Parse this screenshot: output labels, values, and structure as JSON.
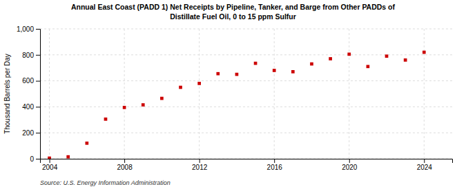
{
  "chart_data": {
    "type": "scatter",
    "title": "Annual East Coast (PADD 1) Net Receipts by Pipeline, Tanker, and Barge from Other PADDs of\nDistillate Fuel Oil, 0 to 15 ppm Sulfur",
    "ylabel": "Thousand Barrels per Day",
    "source": "Source: U.S. Energy Information Administration",
    "x": [
      2004,
      2005,
      2006,
      2007,
      2008,
      2009,
      2010,
      2011,
      2012,
      2013,
      2014,
      2015,
      2016,
      2017,
      2018,
      2019,
      2020,
      2021,
      2022,
      2023,
      2024
    ],
    "values": [
      5,
      15,
      120,
      305,
      395,
      415,
      465,
      550,
      580,
      655,
      650,
      735,
      680,
      670,
      730,
      770,
      805,
      710,
      790,
      760,
      820
    ],
    "color": "#cc0000",
    "marker": "square",
    "xlim": [
      2003.5,
      2025.5
    ],
    "ylim": [
      0,
      1000
    ],
    "xticks": [
      2004,
      2008,
      2012,
      2016,
      2020,
      2024
    ],
    "yticks": [
      0,
      200,
      400,
      600,
      800,
      {
        "value": 1000,
        "label": "1,000"
      }
    ],
    "grid": true
  }
}
